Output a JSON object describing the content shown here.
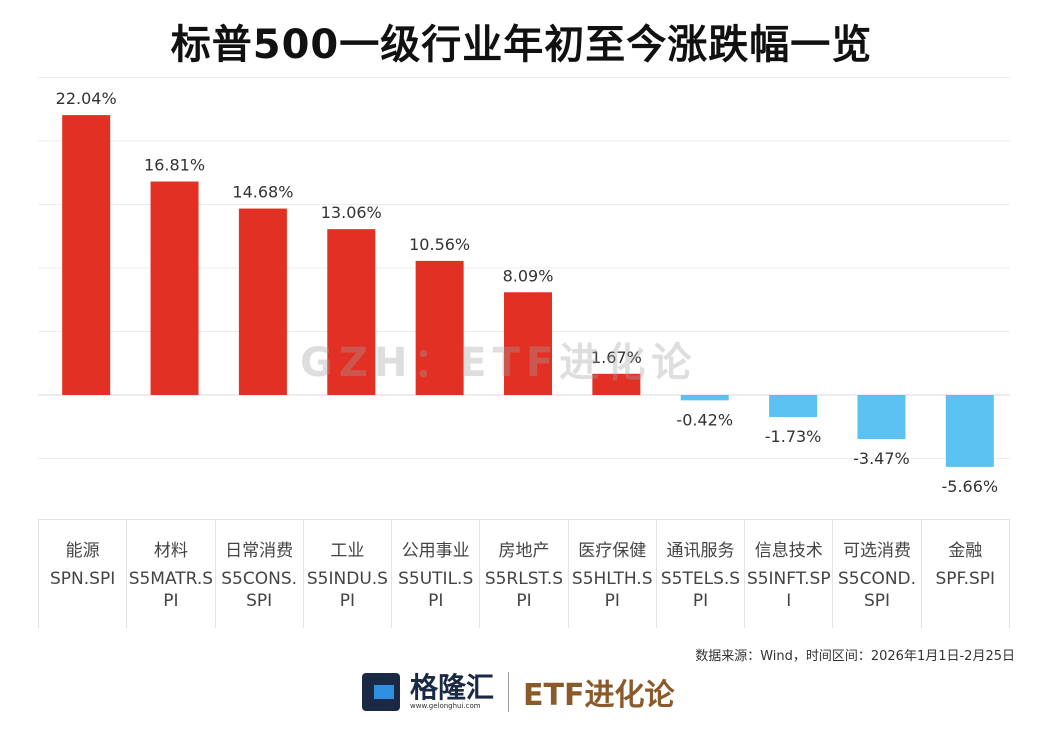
{
  "title": "标普500一级行业年初至今涨跌幅一览",
  "chart_data": {
    "type": "bar",
    "title": "标普500一级行业年初至今涨跌幅一览",
    "categories": [
      "能源",
      "材料",
      "日常消费",
      "工业",
      "公用事业",
      "房地产",
      "医疗保健",
      "通讯服务",
      "信息技术",
      "可选消费",
      "金融"
    ],
    "codes": [
      "SPN.SPI",
      "S5MATR.SPI",
      "S5CONS.SPI",
      "S5INDU.SPI",
      "S5UTIL.SPI",
      "S5RLST.SPI",
      "S5HLTH.SPI",
      "S5TELS.SPI",
      "S5INFT.SPI",
      "S5COND.SPI",
      "SPF.SPI"
    ],
    "values": [
      22.04,
      16.81,
      14.68,
      13.06,
      10.56,
      8.09,
      1.67,
      -0.42,
      -1.73,
      -3.47,
      -5.66
    ],
    "labels": [
      "22.04%",
      "16.81%",
      "14.68%",
      "13.06%",
      "10.56%",
      "8.09%",
      "1.67%",
      "-0.42%",
      "-1.73%",
      "-3.47%",
      "-5.66%"
    ],
    "ylim": [
      -6,
      25
    ],
    "grid": true,
    "colors": {
      "positive": "#e23124",
      "negative": "#5bc1f0"
    }
  },
  "source": "数据来源：Wind，时间区间：2026年1月1日-2月25日",
  "watermark": "GZH：ETF进化论",
  "logo": {
    "brand": "格隆汇",
    "url": "www.gelonghui.com",
    "etf": "ETF进化论"
  }
}
